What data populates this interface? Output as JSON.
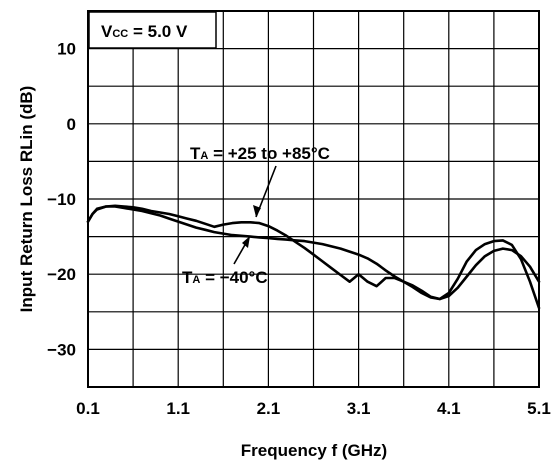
{
  "chart_data": {
    "type": "line",
    "title": "",
    "xlabel": "Frequency  f (GHz)",
    "ylabel": "Input Return Loss  RLin (dB)",
    "xlim": [
      0.1,
      5.1
    ],
    "ylim": [
      -35,
      15
    ],
    "x_ticks": [
      "0.1",
      "1.1",
      "2.1",
      "3.1",
      "4.1",
      "5.1"
    ],
    "y_ticks": [
      "10",
      "0",
      "−10",
      "−20",
      "−30"
    ],
    "x_tick_values": [
      0.1,
      1.1,
      2.1,
      3.1,
      4.1,
      5.1
    ],
    "y_tick_values": [
      10,
      0,
      -10,
      -20,
      -30
    ],
    "x_grid_values": [
      0.1,
      0.6,
      1.1,
      1.6,
      2.1,
      2.6,
      3.1,
      3.6,
      4.1,
      4.6,
      5.1
    ],
    "y_grid_values": [
      15,
      10,
      5,
      0,
      -5,
      -10,
      -15,
      -20,
      -25,
      -30,
      -35
    ],
    "grid": true,
    "condition": {
      "main": "V",
      "sub": "CC",
      "rest": " = 5.0 V"
    },
    "annotations": [
      {
        "main": "T",
        "sub": "A",
        "rest": " = +25 to +85°C"
      },
      {
        "main": "T",
        "sub": "A",
        "rest": " = −40°C"
      }
    ],
    "series": [
      {
        "x": [
          0.1,
          0.15,
          0.2,
          0.3,
          0.4,
          0.5,
          0.6,
          0.7,
          0.8,
          0.9,
          1.0,
          1.1,
          1.2,
          1.3,
          1.4,
          1.5,
          1.6,
          1.7,
          1.8,
          1.9,
          2.0,
          2.1,
          2.2,
          2.3,
          2.4,
          2.5,
          2.6,
          2.7,
          2.8,
          2.9,
          3.0,
          3.1,
          3.2,
          3.3,
          3.4,
          3.5,
          3.6,
          3.7,
          3.8,
          3.9,
          4.0,
          4.1,
          4.2,
          4.3,
          4.4,
          4.5,
          4.6,
          4.7,
          4.8,
          4.9,
          5.0,
          5.1
        ],
        "values": [
          -13.0,
          -12.0,
          -11.3,
          -11.0,
          -10.9,
          -11.0,
          -11.1,
          -11.3,
          -11.6,
          -11.8,
          -12.0,
          -12.3,
          -12.6,
          -12.9,
          -13.3,
          -13.7,
          -13.4,
          -13.2,
          -13.1,
          -13.1,
          -13.2,
          -13.6,
          -14.2,
          -14.9,
          -15.7,
          -16.5,
          -17.4,
          -18.3,
          -19.2,
          -20.1,
          -21.0,
          -20.0,
          -21.0,
          -21.6,
          -20.5,
          -20.5,
          -21.0,
          -21.5,
          -22.2,
          -23.0,
          -23.3,
          -22.5,
          -20.6,
          -18.3,
          -16.8,
          -16.0,
          -15.6,
          -15.5,
          -16.1,
          -18.0,
          -21.0,
          -24.5
        ]
      },
      {
        "x": [
          0.1,
          0.15,
          0.2,
          0.3,
          0.4,
          0.5,
          0.6,
          0.7,
          0.8,
          0.9,
          1.0,
          1.1,
          1.2,
          1.3,
          1.4,
          1.5,
          1.6,
          1.7,
          1.8,
          1.9,
          2.0,
          2.1,
          2.2,
          2.3,
          2.4,
          2.5,
          2.6,
          2.7,
          2.8,
          2.9,
          3.0,
          3.1,
          3.2,
          3.3,
          3.4,
          3.5,
          3.6,
          3.7,
          3.8,
          3.9,
          4.0,
          4.1,
          4.2,
          4.3,
          4.4,
          4.5,
          4.6,
          4.7,
          4.8,
          4.9,
          5.0,
          5.1
        ],
        "values": [
          -13.0,
          -12.0,
          -11.4,
          -11.0,
          -11.0,
          -11.2,
          -11.4,
          -11.6,
          -11.9,
          -12.2,
          -12.6,
          -13.0,
          -13.4,
          -13.8,
          -14.1,
          -14.4,
          -14.6,
          -14.8,
          -14.9,
          -15.0,
          -15.1,
          -15.2,
          -15.3,
          -15.4,
          -15.5,
          -15.6,
          -15.8,
          -16.0,
          -16.3,
          -16.6,
          -17.0,
          -17.4,
          -17.9,
          -18.6,
          -19.5,
          -20.3,
          -21.0,
          -21.7,
          -22.5,
          -23.1,
          -23.3,
          -22.9,
          -21.8,
          -20.3,
          -18.8,
          -17.6,
          -16.9,
          -16.6,
          -16.8,
          -17.6,
          -19.0,
          -21.0
        ]
      }
    ]
  }
}
